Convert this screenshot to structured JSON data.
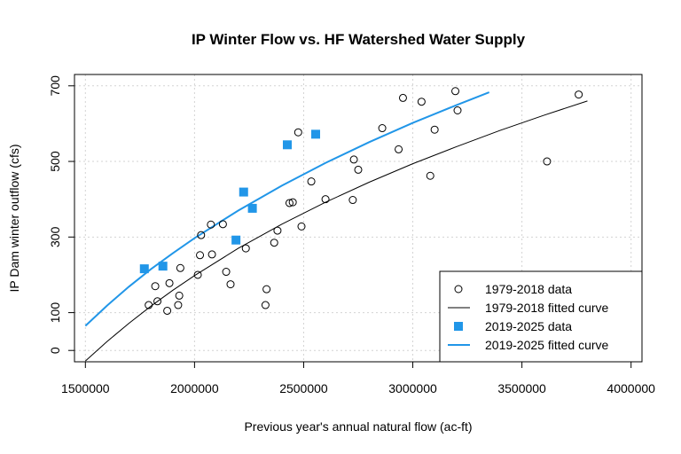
{
  "chart_data": {
    "type": "scatter",
    "title": "IP Winter Flow vs. HF Watershed Water Supply",
    "xlabel": "Previous year's annual natural flow (ac-ft)",
    "ylabel": "IP Dam winter outflow (cfs)",
    "xlim": [
      1450000,
      4050000
    ],
    "ylim": [
      -30,
      730
    ],
    "x_ticks": [
      1500000,
      2000000,
      2500000,
      3000000,
      3500000,
      4000000
    ],
    "x_tick_labels": [
      "1500000",
      "2000000",
      "2500000",
      "3000000",
      "3500000",
      "4000000"
    ],
    "y_ticks": [
      0,
      100,
      300,
      500,
      700
    ],
    "y_tick_labels": [
      "0",
      "100",
      "300",
      "500",
      "700"
    ],
    "grid": true,
    "legend_position": "bottom-right",
    "series": [
      {
        "name": "1979-2018 data",
        "kind": "points",
        "marker": "open-circle",
        "color": "#000000",
        "x": [
          1790000,
          1820000,
          1830000,
          1875000,
          1885000,
          1925000,
          1930000,
          1935000,
          2015000,
          2025000,
          2030000,
          2075000,
          2080000,
          2130000,
          2145000,
          2165000,
          2235000,
          2325000,
          2330000,
          2365000,
          2380000,
          2435000,
          2450000,
          2475000,
          2490000,
          2535000,
          2600000,
          2725000,
          2730000,
          2750000,
          2860000,
          2935000,
          2955000,
          3040000,
          3080000,
          3100000,
          3195000,
          3205000,
          3615000,
          3760000
        ],
        "y": [
          120,
          170,
          130,
          105,
          178,
          120,
          145,
          218,
          200,
          252,
          305,
          333,
          254,
          334,
          208,
          175,
          270,
          120,
          162,
          285,
          317,
          390,
          392,
          577,
          328,
          447,
          400,
          398,
          505,
          478,
          588,
          532,
          668,
          658,
          462,
          584,
          686,
          635,
          500,
          677
        ]
      },
      {
        "name": "1979-2018 fitted curve",
        "kind": "curve",
        "color": "#000000",
        "x": [
          1500000,
          1600000,
          1700000,
          1800000,
          1900000,
          2000000,
          2200000,
          2400000,
          2600000,
          2800000,
          3000000,
          3200000,
          3400000,
          3600000,
          3800000
        ],
        "y": [
          -28,
          24,
          72,
          117,
          159,
          198,
          270,
          334,
          392,
          445,
          494,
          539,
          582,
          622,
          660
        ]
      },
      {
        "name": "2019-2025 data",
        "kind": "points",
        "marker": "filled-square",
        "color": "#2196e8",
        "x": [
          1770000,
          1855000,
          2190000,
          2225000,
          2265000,
          2425000,
          2555000
        ],
        "y": [
          216,
          223,
          292,
          419,
          376,
          544,
          572
        ]
      },
      {
        "name": "2019-2025 fitted curve",
        "kind": "curve",
        "color": "#2196e8",
        "x": [
          1500000,
          1600000,
          1700000,
          1800000,
          1900000,
          2000000,
          2200000,
          2400000,
          2600000,
          2800000,
          3000000,
          3200000,
          3350000
        ],
        "y": [
          65,
          119,
          169,
          215,
          257,
          297,
          370,
          436,
          496,
          551,
          602,
          649,
          683
        ]
      }
    ]
  }
}
